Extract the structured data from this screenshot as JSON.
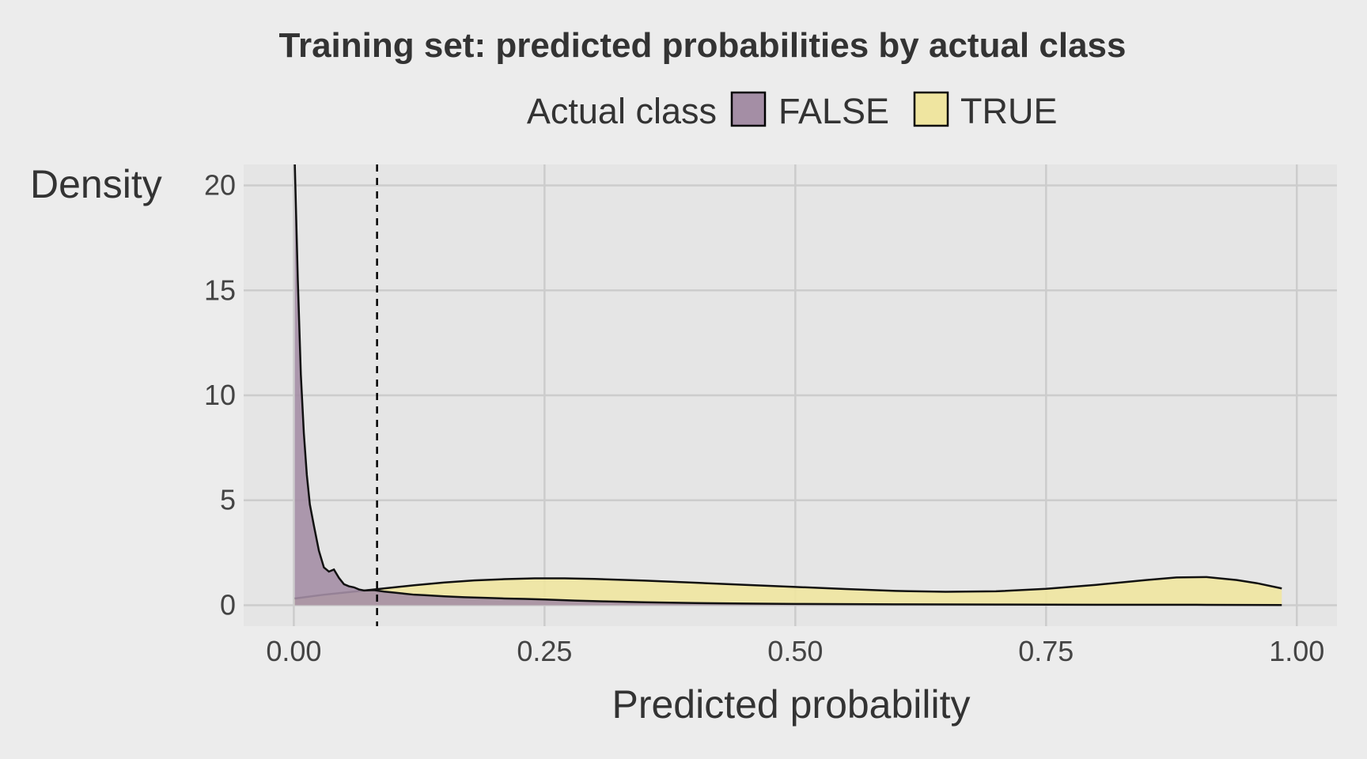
{
  "chart_data": {
    "type": "area",
    "title": "Training set: predicted probabilities by actual class",
    "xlabel": "Predicted probability",
    "ylabel": "Density",
    "xlim": [
      -0.05,
      1.04
    ],
    "ylim": [
      -1,
      21
    ],
    "x_ticks": [
      "0.00",
      "0.25",
      "0.50",
      "0.75",
      "1.00"
    ],
    "x_tick_values": [
      0,
      0.25,
      0.5,
      0.75,
      1.0
    ],
    "y_ticks": [
      "0",
      "5",
      "10",
      "15",
      "20"
    ],
    "y_tick_values": [
      0,
      5,
      10,
      15,
      20
    ],
    "grid": true,
    "legend": {
      "title": "Actual class",
      "position": "top",
      "entries": [
        {
          "label": "FALSE",
          "color": "#a48ea5"
        },
        {
          "label": "TRUE",
          "color": "#efe5a0"
        }
      ]
    },
    "threshold": 0.083,
    "series": [
      {
        "name": "FALSE",
        "color": "#a48ea5",
        "x": [
          0.001,
          0.004,
          0.007,
          0.01,
          0.013,
          0.016,
          0.02,
          0.025,
          0.03,
          0.035,
          0.04,
          0.045,
          0.05,
          0.055,
          0.06,
          0.065,
          0.07,
          0.08,
          0.09,
          0.1,
          0.11,
          0.12,
          0.13,
          0.14,
          0.15,
          0.17,
          0.19,
          0.21,
          0.23,
          0.25,
          0.28,
          0.31,
          0.35,
          0.4,
          0.45,
          0.5,
          0.6,
          0.7,
          0.8,
          0.9,
          0.985
        ],
        "values": [
          21,
          15.5,
          11,
          8.2,
          6.2,
          4.8,
          3.8,
          2.6,
          1.8,
          1.6,
          1.7,
          1.3,
          1.0,
          0.9,
          0.85,
          0.75,
          0.7,
          0.72,
          0.65,
          0.6,
          0.55,
          0.5,
          0.48,
          0.45,
          0.42,
          0.38,
          0.35,
          0.32,
          0.3,
          0.27,
          0.22,
          0.18,
          0.14,
          0.1,
          0.08,
          0.06,
          0.04,
          0.03,
          0.02,
          0.02,
          0.01
        ]
      },
      {
        "name": "TRUE",
        "color": "#efe5a0",
        "x": [
          0.001,
          0.03,
          0.06,
          0.09,
          0.12,
          0.15,
          0.18,
          0.21,
          0.24,
          0.27,
          0.3,
          0.35,
          0.4,
          0.45,
          0.5,
          0.55,
          0.6,
          0.65,
          0.7,
          0.75,
          0.8,
          0.85,
          0.88,
          0.91,
          0.94,
          0.96,
          0.985
        ],
        "values": [
          0.32,
          0.5,
          0.65,
          0.8,
          0.95,
          1.08,
          1.18,
          1.24,
          1.28,
          1.28,
          1.25,
          1.17,
          1.07,
          0.97,
          0.87,
          0.77,
          0.68,
          0.64,
          0.66,
          0.78,
          0.97,
          1.2,
          1.32,
          1.34,
          1.2,
          1.05,
          0.8
        ]
      }
    ]
  }
}
